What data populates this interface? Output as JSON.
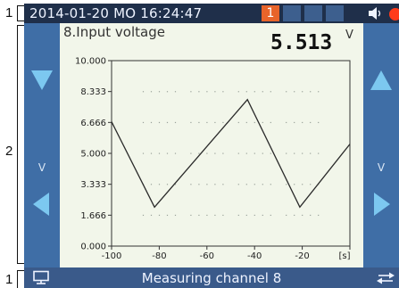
{
  "callouts": [
    "1",
    "2",
    "1"
  ],
  "status_bar": {
    "datetime": "2014-01-20 MO 16:24:47",
    "badge": "1"
  },
  "channel": {
    "title": "8.Input voltage",
    "value": "5.513",
    "unit": "V",
    "side_unit": "V"
  },
  "bottom_bar": {
    "label": "Measuring channel 8"
  },
  "icons": [
    "arrow-down-icon",
    "arrow-left-icon",
    "arrow-up-icon",
    "arrow-right-icon",
    "speaker-icon",
    "alarm-icon",
    "monitor-icon",
    "swap-icon"
  ],
  "colors": {
    "header_bg": "#1f2f4a",
    "side_bg": "#3f6ea6",
    "arrow": "#7cc8f0",
    "badge": "#e8642a",
    "alarm": "#ff3b1a",
    "plot_bg": "#f2f6ea"
  },
  "chart_data": {
    "type": "line",
    "title": "8.Input voltage",
    "xlabel": "[s]",
    "ylabel": "",
    "xlim": [
      -100,
      0
    ],
    "ylim": [
      0,
      10
    ],
    "x_ticks": [
      "-100",
      "-80",
      "-60",
      "-40",
      "-20",
      "[s]"
    ],
    "y_ticks": [
      "10.000",
      "8.333",
      "6.666",
      "5.000",
      "3.333",
      "1.666",
      "0.000"
    ],
    "grid": "dotted",
    "series": [
      {
        "x": [
          -100,
          -82,
          -43,
          -21,
          0
        ],
        "y": [
          6.7,
          2.1,
          7.9,
          2.1,
          5.5
        ]
      }
    ]
  }
}
